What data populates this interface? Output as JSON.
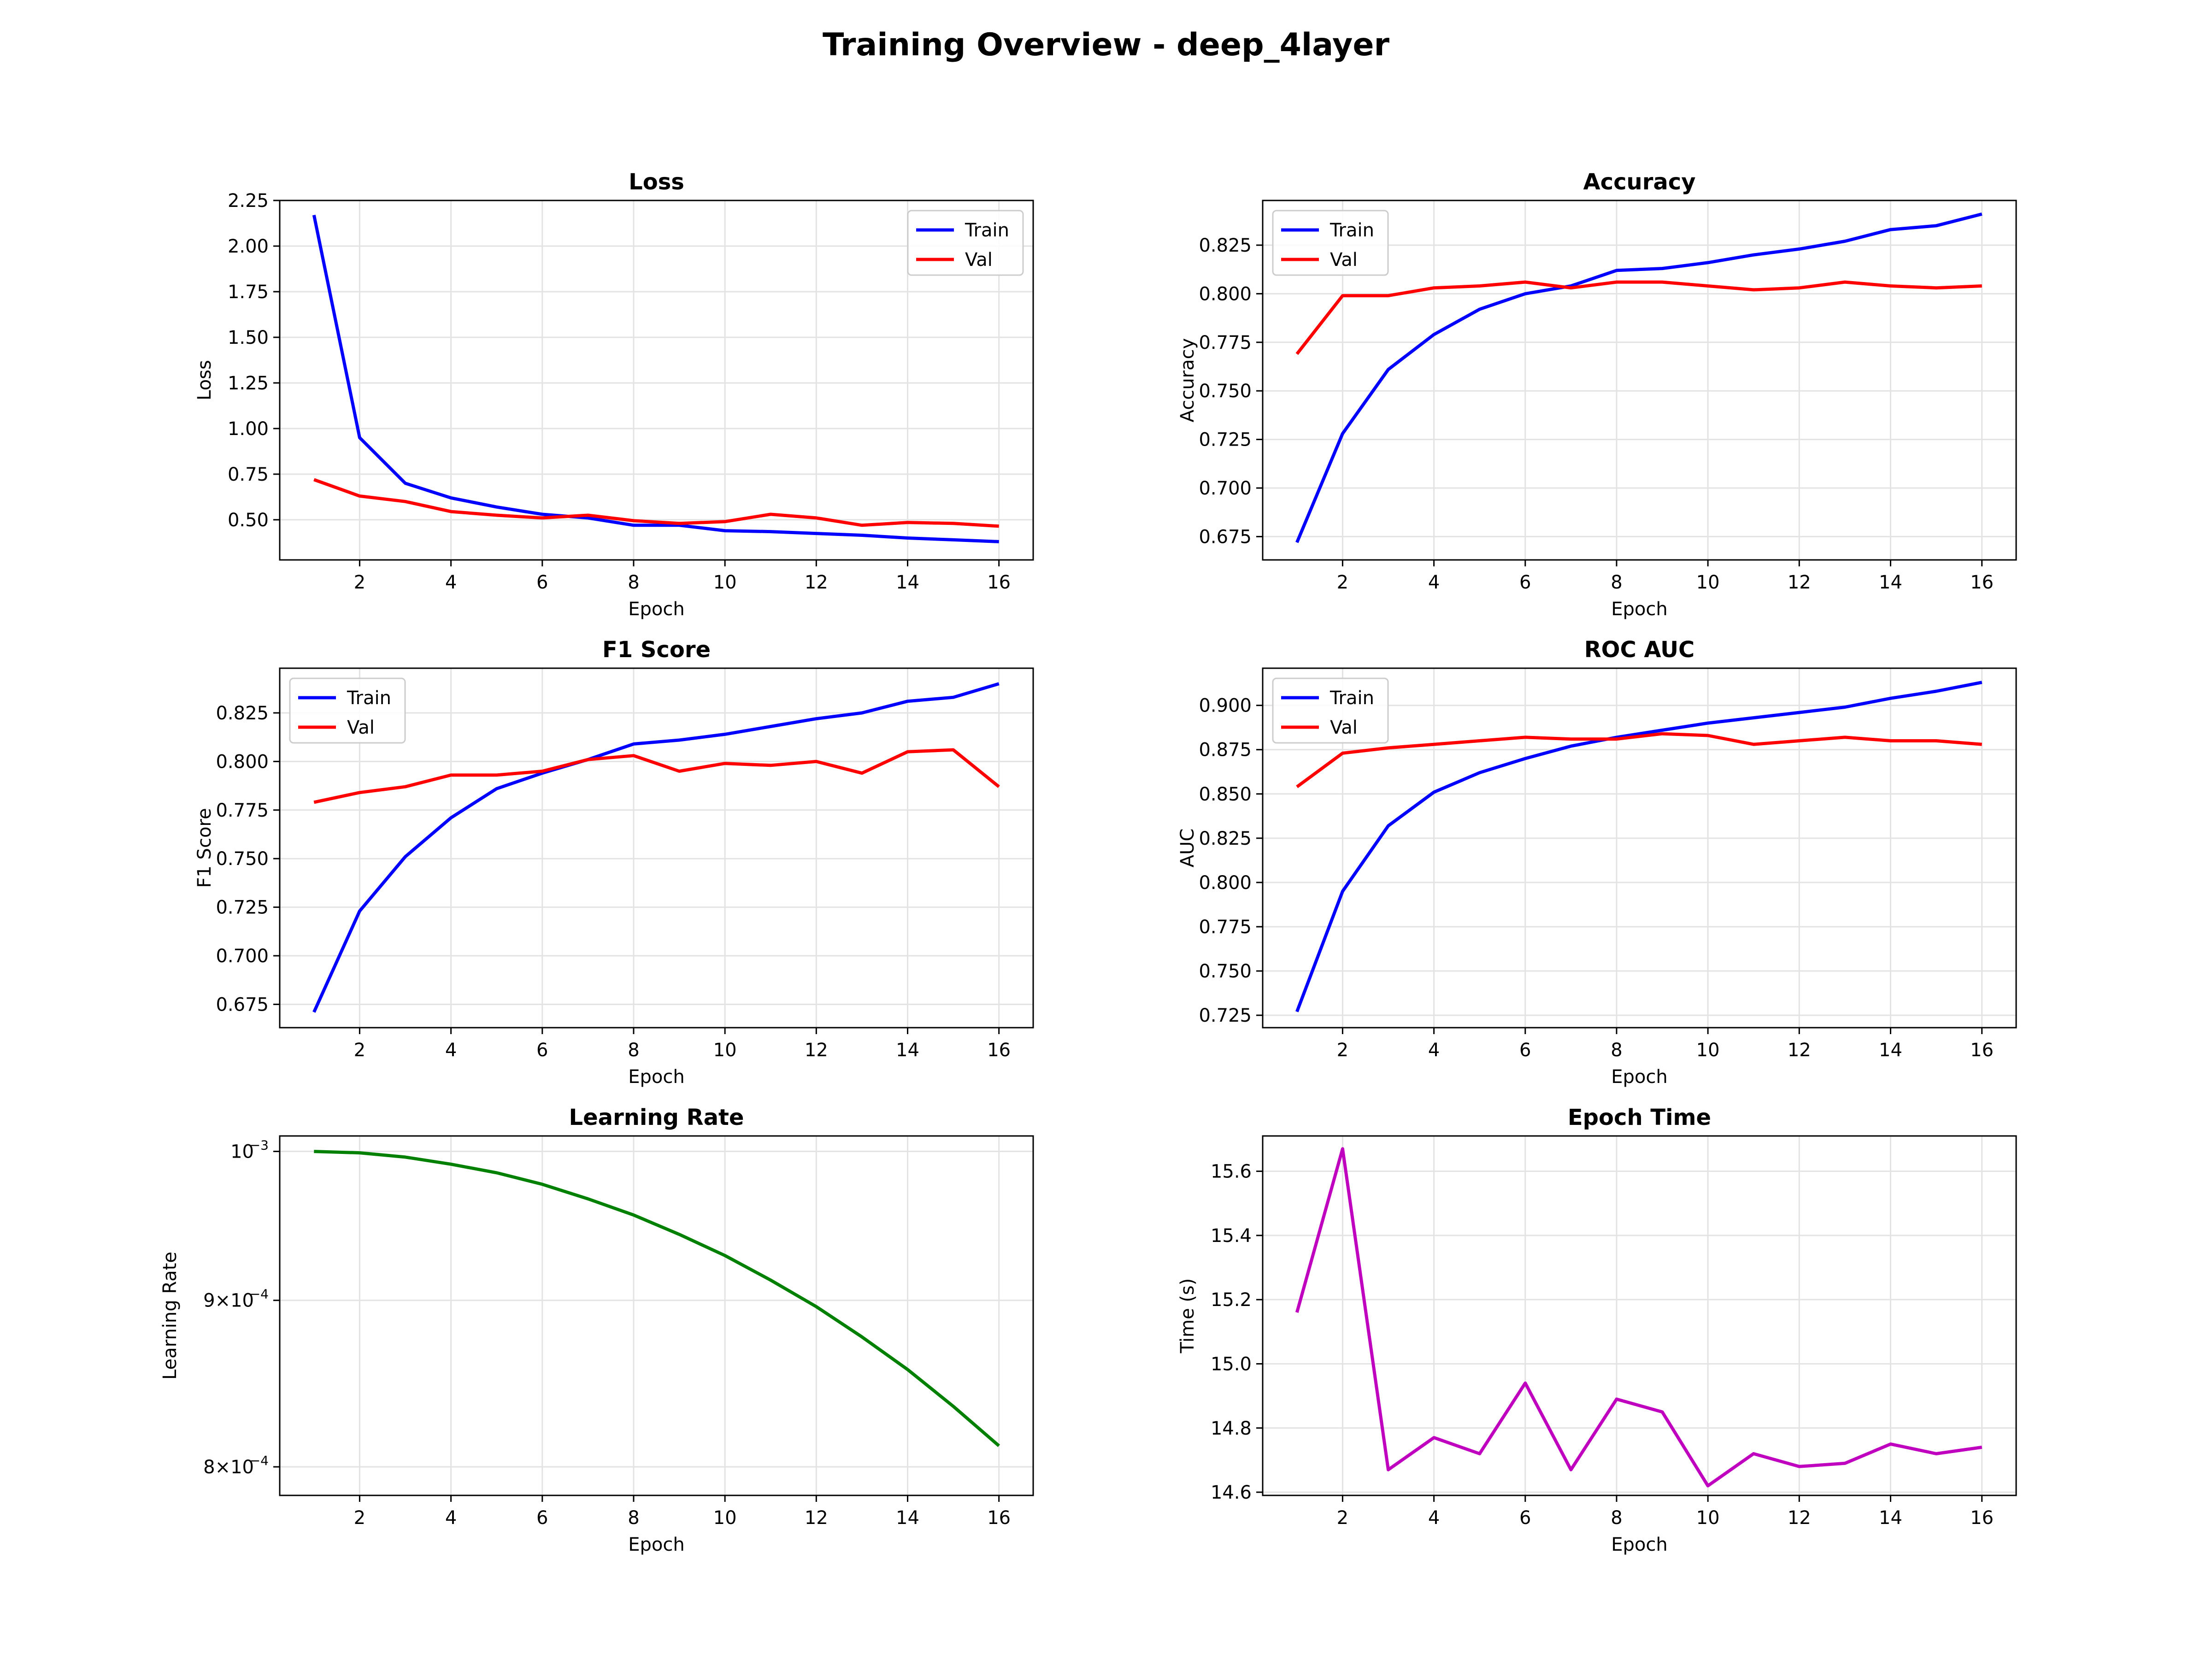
{
  "figure": {
    "title": "Training Overview - deep_4layer"
  },
  "colors": {
    "train": "#0000ff",
    "val": "#ff0000",
    "lr": "#008000",
    "time": "#bf00bf",
    "grid": "#e3e3e3"
  },
  "chart_data": [
    {
      "type": "line",
      "title": "Loss",
      "xlabel": "Epoch",
      "ylabel": "Loss",
      "xlim": [
        0.25,
        16.75
      ],
      "ylim": [
        0.28,
        2.25
      ],
      "xticks": [
        2,
        4,
        6,
        8,
        10,
        12,
        14,
        16
      ],
      "yticks": [
        0.5,
        0.75,
        1.0,
        1.25,
        1.5,
        1.75,
        2.0,
        2.25
      ],
      "ytick_labels": [
        "0.50",
        "0.75",
        "1.00",
        "1.25",
        "1.50",
        "1.75",
        "2.00",
        "2.25"
      ],
      "grid": true,
      "legend": "top-right",
      "x": [
        1,
        2,
        3,
        4,
        5,
        6,
        7,
        8,
        9,
        10,
        11,
        12,
        13,
        14,
        15,
        16
      ],
      "series": [
        {
          "name": "Train",
          "color": "#0000ff",
          "values": [
            2.17,
            0.95,
            0.7,
            0.62,
            0.57,
            0.53,
            0.51,
            0.47,
            0.47,
            0.44,
            0.435,
            0.425,
            0.415,
            0.4,
            0.39,
            0.38
          ]
        },
        {
          "name": "Val",
          "color": "#ff0000",
          "values": [
            0.72,
            0.63,
            0.6,
            0.545,
            0.525,
            0.51,
            0.525,
            0.495,
            0.48,
            0.49,
            0.53,
            0.51,
            0.47,
            0.485,
            0.48,
            0.465
          ]
        }
      ]
    },
    {
      "type": "line",
      "title": "Accuracy",
      "xlabel": "Epoch",
      "ylabel": "Accuracy",
      "xlim": [
        0.25,
        16.75
      ],
      "ylim": [
        0.663,
        0.848
      ],
      "xticks": [
        2,
        4,
        6,
        8,
        10,
        12,
        14,
        16
      ],
      "yticks": [
        0.675,
        0.7,
        0.725,
        0.75,
        0.775,
        0.8,
        0.825
      ],
      "ytick_labels": [
        "0.675",
        "0.700",
        "0.725",
        "0.750",
        "0.775",
        "0.800",
        "0.825"
      ],
      "grid": true,
      "legend": "top-left",
      "x": [
        1,
        2,
        3,
        4,
        5,
        6,
        7,
        8,
        9,
        10,
        11,
        12,
        13,
        14,
        15,
        16
      ],
      "series": [
        {
          "name": "Train",
          "color": "#0000ff",
          "values": [
            0.672,
            0.728,
            0.761,
            0.779,
            0.792,
            0.8,
            0.804,
            0.812,
            0.813,
            0.816,
            0.82,
            0.823,
            0.827,
            0.833,
            0.835,
            0.841
          ]
        },
        {
          "name": "Val",
          "color": "#ff0000",
          "values": [
            0.769,
            0.799,
            0.799,
            0.803,
            0.804,
            0.806,
            0.803,
            0.806,
            0.806,
            0.804,
            0.802,
            0.803,
            0.806,
            0.804,
            0.803,
            0.804
          ]
        }
      ]
    },
    {
      "type": "line",
      "title": "F1 Score",
      "xlabel": "Epoch",
      "ylabel": "F1 Score",
      "xlim": [
        0.25,
        16.75
      ],
      "ylim": [
        0.663,
        0.848
      ],
      "xticks": [
        2,
        4,
        6,
        8,
        10,
        12,
        14,
        16
      ],
      "yticks": [
        0.675,
        0.7,
        0.725,
        0.75,
        0.775,
        0.8,
        0.825
      ],
      "ytick_labels": [
        "0.675",
        "0.700",
        "0.725",
        "0.750",
        "0.775",
        "0.800",
        "0.825"
      ],
      "grid": true,
      "legend": "top-left",
      "x": [
        1,
        2,
        3,
        4,
        5,
        6,
        7,
        8,
        9,
        10,
        11,
        12,
        13,
        14,
        15,
        16
      ],
      "series": [
        {
          "name": "Train",
          "color": "#0000ff",
          "values": [
            0.671,
            0.723,
            0.751,
            0.771,
            0.786,
            0.794,
            0.801,
            0.809,
            0.811,
            0.814,
            0.818,
            0.822,
            0.825,
            0.831,
            0.833,
            0.84
          ]
        },
        {
          "name": "Val",
          "color": "#ff0000",
          "values": [
            0.779,
            0.784,
            0.787,
            0.793,
            0.793,
            0.795,
            0.801,
            0.803,
            0.795,
            0.799,
            0.798,
            0.8,
            0.794,
            0.805,
            0.806,
            0.787
          ]
        }
      ]
    },
    {
      "type": "line",
      "title": "ROC AUC",
      "xlabel": "Epoch",
      "ylabel": "AUC",
      "xlim": [
        0.25,
        16.75
      ],
      "ylim": [
        0.718,
        0.921
      ],
      "xticks": [
        2,
        4,
        6,
        8,
        10,
        12,
        14,
        16
      ],
      "yticks": [
        0.725,
        0.75,
        0.775,
        0.8,
        0.825,
        0.85,
        0.875,
        0.9
      ],
      "ytick_labels": [
        "0.725",
        "0.750",
        "0.775",
        "0.800",
        "0.825",
        "0.850",
        "0.875",
        "0.900"
      ],
      "grid": true,
      "legend": "top-left",
      "x": [
        1,
        2,
        3,
        4,
        5,
        6,
        7,
        8,
        9,
        10,
        11,
        12,
        13,
        14,
        15,
        16
      ],
      "series": [
        {
          "name": "Train",
          "color": "#0000ff",
          "values": [
            0.727,
            0.795,
            0.832,
            0.851,
            0.862,
            0.87,
            0.877,
            0.882,
            0.886,
            0.89,
            0.893,
            0.896,
            0.899,
            0.904,
            0.908,
            0.913
          ]
        },
        {
          "name": "Val",
          "color": "#ff0000",
          "values": [
            0.854,
            0.873,
            0.876,
            0.878,
            0.88,
            0.882,
            0.881,
            0.881,
            0.884,
            0.883,
            0.878,
            0.88,
            0.882,
            0.88,
            0.88,
            0.878
          ]
        }
      ]
    },
    {
      "type": "line",
      "title": "Learning Rate",
      "xlabel": "Epoch",
      "ylabel": "Learning Rate",
      "yscale": "log",
      "xlim": [
        0.25,
        16.75
      ],
      "ylim": [
        0.000784,
        0.001011
      ],
      "xticks": [
        2,
        4,
        6,
        8,
        10,
        12,
        14,
        16
      ],
      "yticks": [
        0.0008,
        0.0009,
        0.001
      ],
      "ytick_labels": [
        {
          "mantissa": "8×10",
          "exp": "−4"
        },
        {
          "mantissa": "9×10",
          "exp": "−4"
        },
        {
          "mantissa": "10",
          "exp": "−3"
        }
      ],
      "grid": true,
      "x": [
        1,
        2,
        3,
        4,
        5,
        6,
        7,
        8,
        9,
        10,
        11,
        12,
        13,
        14,
        15,
        16
      ],
      "series": [
        {
          "color": "#008000",
          "values": [
            0.001,
            0.000999,
            0.000996,
            0.000991,
            0.000985,
            0.000977,
            0.000967,
            0.000956,
            0.000943,
            0.000929,
            0.000913,
            0.000896,
            0.000877,
            0.000857,
            0.000835,
            0.000812
          ]
        }
      ]
    },
    {
      "type": "line",
      "title": "Epoch Time",
      "xlabel": "Epoch",
      "ylabel": "Time (s)",
      "xlim": [
        0.25,
        16.75
      ],
      "ylim": [
        14.59,
        15.71
      ],
      "xticks": [
        2,
        4,
        6,
        8,
        10,
        12,
        14,
        16
      ],
      "yticks": [
        14.6,
        14.8,
        15.0,
        15.2,
        15.4,
        15.6
      ],
      "ytick_labels": [
        "14.6",
        "14.8",
        "15.0",
        "15.2",
        "15.4",
        "15.6"
      ],
      "grid": true,
      "x": [
        1,
        2,
        3,
        4,
        5,
        6,
        7,
        8,
        9,
        10,
        11,
        12,
        13,
        14,
        15,
        16
      ],
      "series": [
        {
          "color": "#bf00bf",
          "values": [
            15.16,
            15.67,
            14.67,
            14.77,
            14.72,
            14.94,
            14.67,
            14.89,
            14.85,
            14.62,
            14.72,
            14.68,
            14.69,
            14.75,
            14.72,
            14.74
          ]
        }
      ]
    }
  ]
}
